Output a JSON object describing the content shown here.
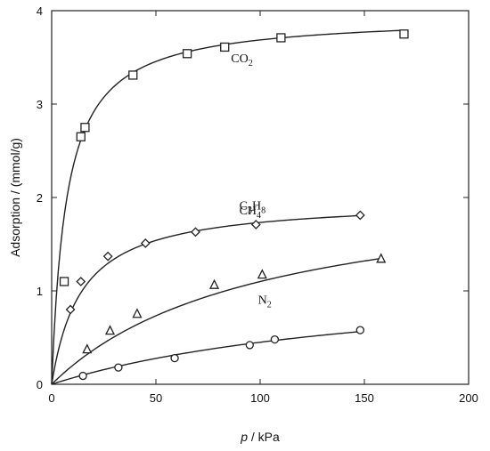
{
  "chart_data": {
    "type": "scatter",
    "xlabel_var": "p",
    "xlabel_unit": " / kPa",
    "ylabel": "Adsorption / (mmol/g)",
    "xlim": [
      0,
      200
    ],
    "ylim": [
      0,
      4
    ],
    "xticks": [
      0,
      50,
      100,
      150,
      200
    ],
    "yticks": [
      0,
      1,
      2,
      3,
      4
    ],
    "grid": false,
    "series": [
      {
        "name": "CO2",
        "label_main": "CO",
        "label_sub": "2",
        "marker": "square",
        "x": [
          6,
          14,
          16,
          39,
          65,
          83,
          110,
          169
        ],
        "y": [
          1.1,
          2.65,
          2.75,
          3.31,
          3.54,
          3.61,
          3.71,
          3.75
        ],
        "fit": {
          "qmax": 3.95,
          "b": 0.14
        },
        "label_at": {
          "x": 86,
          "y": 3.45
        }
      },
      {
        "name": "C3H8",
        "label_main": "C3H8",
        "label_parts": [
          [
            "C",
            ""
          ],
          [
            "3",
            "sub"
          ],
          [
            "H",
            ""
          ],
          [
            "8",
            "sub"
          ]
        ],
        "marker": "diamond",
        "x": [
          9,
          14,
          27,
          45,
          69,
          98,
          148
        ],
        "y": [
          0.8,
          1.1,
          1.37,
          1.51,
          1.63,
          1.71,
          1.81
        ],
        "fit": {
          "qmax": 1.98,
          "b": 0.07
        },
        "label_at": {
          "x": 90,
          "y": 1.87
        }
      },
      {
        "name": "CH4",
        "label_main": "CH",
        "label_sub": "4",
        "marker": "triangle",
        "x": [
          17,
          28,
          41,
          78,
          101,
          158
        ],
        "y": [
          0.37,
          0.57,
          0.75,
          1.06,
          1.17,
          1.34
        ],
        "fit": {
          "qmax": 2.2,
          "b": 0.01
        },
        "label_at": {
          "x": 90,
          "y": 1.82
        }
      },
      {
        "name": "N2",
        "label_main": "N",
        "label_sub": "2",
        "marker": "circle",
        "x": [
          15,
          32,
          59,
          95,
          107,
          148
        ],
        "y": [
          0.09,
          0.18,
          0.28,
          0.42,
          0.48,
          0.58
        ],
        "fit": {
          "qmax": 1.2,
          "b": 0.006
        },
        "label_at": {
          "x": 99,
          "y": 0.86
        }
      }
    ]
  }
}
